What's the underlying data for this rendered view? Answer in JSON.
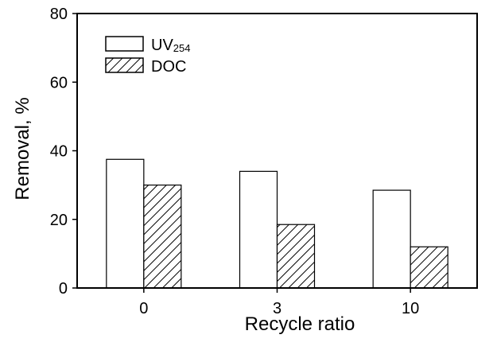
{
  "chart_data": {
    "type": "bar",
    "xlabel": "Recycle ratio",
    "ylabel": "Removal, %",
    "categories": [
      "0",
      "3",
      "10"
    ],
    "ylim": [
      0,
      80
    ],
    "yticks": [
      "0",
      "20",
      "40",
      "60",
      "80"
    ],
    "grid": false,
    "legend_position": "top-left",
    "series": [
      {
        "name": "UV254",
        "name_main": "UV",
        "name_sub": "254",
        "values": [
          37.5,
          34,
          28.5
        ],
        "fill": "#ffffff"
      },
      {
        "name": "DOC",
        "values": [
          30,
          18.5,
          12
        ],
        "fill": "hatched"
      }
    ]
  }
}
